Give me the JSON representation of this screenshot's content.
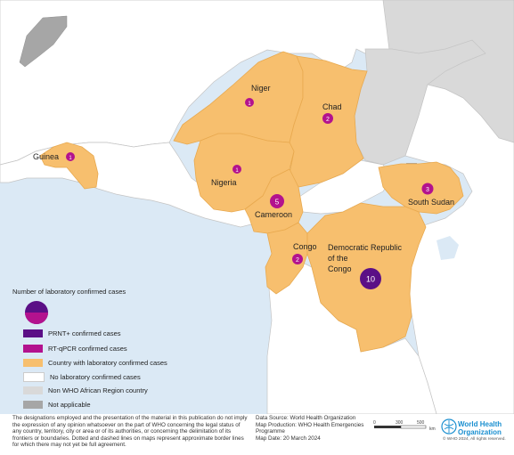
{
  "colors": {
    "ocean": "#dbe9f5",
    "confirmed": "#f7bf6e",
    "no_confirmed": "#ffffff",
    "non_who": "#d9d9d9",
    "not_applicable": "#a6a6a6",
    "prnt": "#5b0f86",
    "rtqpcr": "#b3128e",
    "border": "#bfbfbf"
  },
  "countries": [
    {
      "name": "Niger",
      "prnt": 0,
      "rtqpcr": 1,
      "bubble_label": "1"
    },
    {
      "name": "Chad",
      "prnt": 0,
      "rtqpcr": 2,
      "bubble_label": "2"
    },
    {
      "name": "Guinea",
      "prnt": 0,
      "rtqpcr": 1,
      "bubble_label": "1"
    },
    {
      "name": "Nigeria",
      "prnt": 0,
      "rtqpcr": 1,
      "bubble_label": "1"
    },
    {
      "name": "Cameroon",
      "prnt": 0,
      "rtqpcr": 5,
      "bubble_label": "5"
    },
    {
      "name": "South Sudan",
      "prnt": 0,
      "rtqpcr": 3,
      "bubble_label": "3"
    },
    {
      "name": "Congo",
      "prnt": 0,
      "rtqpcr": 2,
      "bubble_label": "2"
    },
    {
      "name": "Democratic Republic of the Congo",
      "prnt": 0,
      "rtqpcr": 10,
      "bubble_label": "10"
    }
  ],
  "labels": {
    "niger": "Niger",
    "chad": "Chad",
    "guinea": "Guinea",
    "nigeria": "Nigeria",
    "cameroon": "Cameroon",
    "south_sudan": "South Sudan",
    "congo": "Congo",
    "drc_line1": "Democratic Republic",
    "drc_line2": "of the",
    "drc_line3": "Congo"
  },
  "bubbles": {
    "niger": "1",
    "chad": "2",
    "guinea": "1",
    "nigeria": "1",
    "cameroon": "5",
    "south_sudan": "3",
    "congo": "2",
    "drc": "10"
  },
  "legend": {
    "title": "Number of laboratory confirmed cases",
    "prnt": "PRNT+ confirmed cases",
    "rtqpcr": "RT-qPCR confirmed cases",
    "country_confirmed": "Country with laboratory confirmed cases",
    "no_confirmed": "No laboratory confirmed cases",
    "non_who": "Non WHO African Region country",
    "not_applicable": "Not applicable"
  },
  "footer": {
    "disclaimer": "The designations employed and the presentation of the material in this publication do not imply the expression of any opinion whatsoever on the part of WHO concerning the legal status of any country, territory, city or area or of its authorities, or concerning the delimitation of its frontiers or boundaries. Dotted and dashed lines on maps represent approximate border lines for which there may not yet be full agreement.",
    "data_source": "Data Source: World Health Organization",
    "map_production_1": "Map Production: WHO Health Emergencies",
    "map_production_2": "Programme",
    "map_date": "Map Date: 20 March 2024",
    "scale_0": "0",
    "scale_1": "300",
    "scale_2": "500",
    "scale_unit": "km",
    "who_line1": "World Health",
    "who_line2": "Organization",
    "copyright": "© WHO 2024, All rights reserved."
  }
}
